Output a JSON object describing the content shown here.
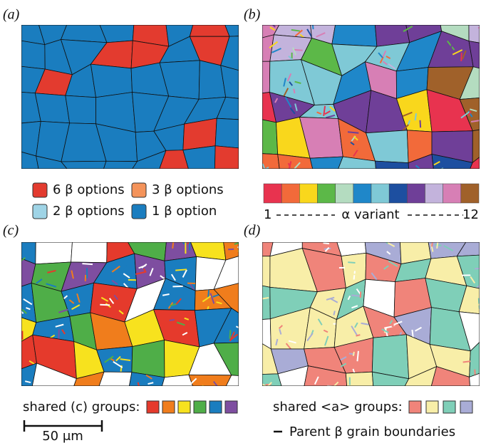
{
  "panels": [
    {
      "label": "(a)"
    },
    {
      "label": "(b)"
    },
    {
      "label": "(c)"
    },
    {
      "label": "(d)"
    }
  ],
  "legend_a": {
    "items": [
      {
        "label": "6 β options",
        "color": "#e33b2f"
      },
      {
        "label": "3 β options",
        "color": "#f4935a"
      },
      {
        "label": "2 β options",
        "color": "#9fd4e6"
      },
      {
        "label": "1 β option",
        "color": "#1a7dbf"
      }
    ]
  },
  "legend_b": {
    "colors": [
      "#e8334f",
      "#f26a3a",
      "#f9d71c",
      "#5cb848",
      "#b4dcc0",
      "#1f87c9",
      "#7fc9d6",
      "#1d4fa0",
      "#6f3f98",
      "#c3b3dc",
      "#d77fb5",
      "#a0612a"
    ],
    "start": "1",
    "middle": "α variant",
    "end": "12"
  },
  "legend_c": {
    "label": "shared (c) groups:",
    "colors": [
      "#e53a2c",
      "#f07d1c",
      "#f7e21e",
      "#4fae48",
      "#1a7dbf",
      "#7e4ea0"
    ]
  },
  "legend_d": {
    "label": "shared <a> groups:",
    "colors": [
      "#f0847a",
      "#f8eea8",
      "#7fcfb8",
      "#a9acd6"
    ]
  },
  "scale_bar": {
    "label": "50 μm"
  },
  "boundary_note": "Parent β grain boundaries"
}
